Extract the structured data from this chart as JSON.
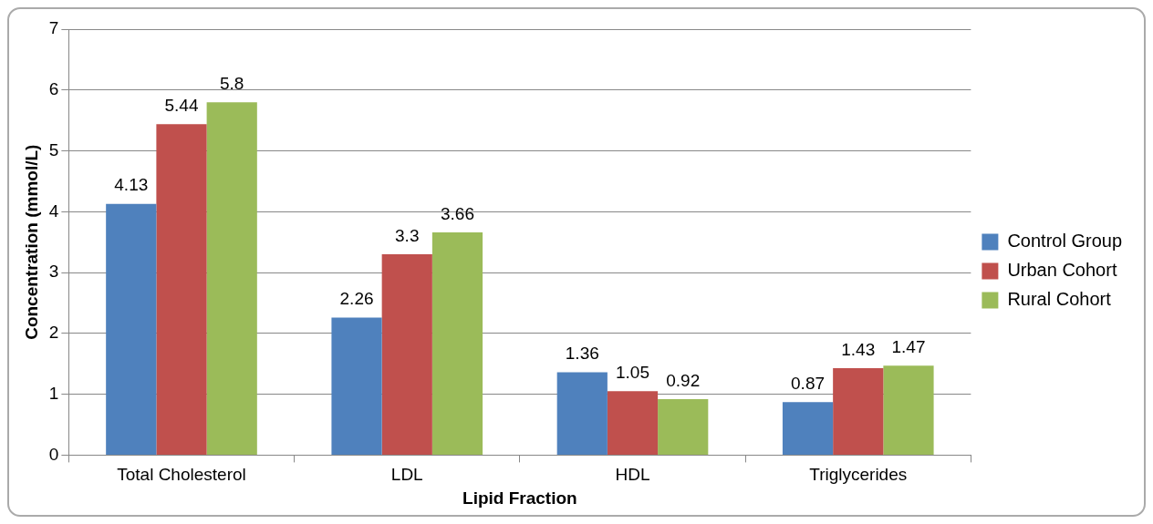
{
  "chart_data": {
    "type": "bar",
    "xlabel": "Lipid Fraction",
    "ylabel": "Concentration (mmol/L)",
    "categories": [
      "Total Cholesterol",
      "LDL",
      "HDL",
      "Triglycerides"
    ],
    "series": [
      {
        "name": "Control Group",
        "color": "#4f81bd",
        "values": [
          4.13,
          2.26,
          1.36,
          0.87
        ]
      },
      {
        "name": "Urban Cohort",
        "color": "#c0504d",
        "values": [
          5.44,
          3.3,
          1.05,
          1.43
        ]
      },
      {
        "name": "Rural Cohort",
        "color": "#9bbb59",
        "values": [
          5.8,
          3.66,
          0.92,
          1.47
        ]
      }
    ],
    "ylim": [
      0,
      7
    ],
    "yticks": [
      0,
      1,
      2,
      3,
      4,
      5,
      6,
      7
    ],
    "grid": "y",
    "legend": "right",
    "data_labels": true
  }
}
